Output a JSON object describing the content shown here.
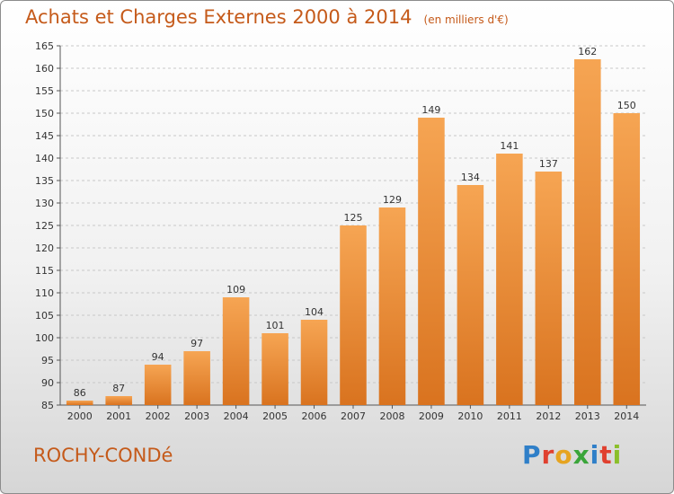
{
  "title": "Achats et Charges Externes 2000 à 2014",
  "subtitle": "(en milliers d'€)",
  "commune": "ROCHY-CONDé",
  "logo": "Proxiti",
  "colors": {
    "title": "#c55a1a",
    "bar_light": "#f6a553",
    "bar_dark": "#d9731f",
    "grid": "#c8c8c8"
  },
  "chart_data": {
    "type": "bar",
    "categories": [
      "2000",
      "2001",
      "2002",
      "2003",
      "2004",
      "2005",
      "2006",
      "2007",
      "2008",
      "2009",
      "2010",
      "2011",
      "2012",
      "2013",
      "2014"
    ],
    "values": [
      86,
      87,
      94,
      97,
      109,
      101,
      104,
      125,
      129,
      149,
      134,
      141,
      137,
      162,
      150
    ],
    "data_labels": [
      "86",
      "87",
      "94",
      "97",
      "109",
      "101",
      "104",
      "125",
      "129",
      "149",
      "134",
      "141",
      "137",
      "162",
      "150"
    ],
    "ylim": [
      85,
      165
    ],
    "yticks": [
      85,
      90,
      95,
      100,
      105,
      110,
      115,
      120,
      125,
      130,
      135,
      140,
      145,
      150,
      155,
      160,
      165
    ],
    "grid": "horizontal dashed",
    "xlabel": "",
    "ylabel": ""
  }
}
